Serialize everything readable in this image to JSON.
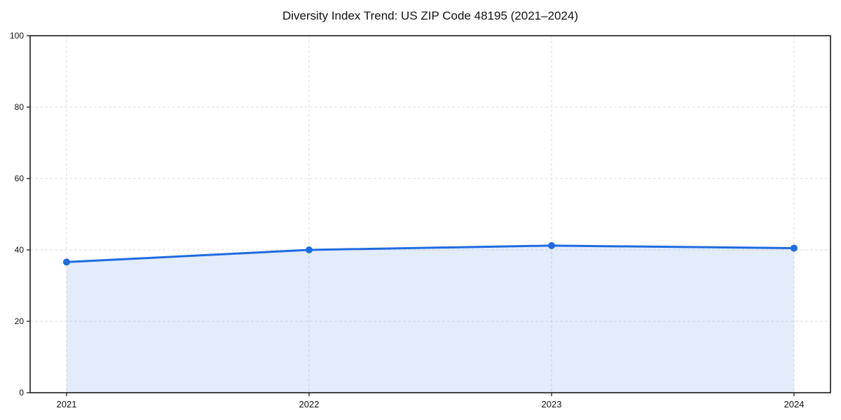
{
  "chart_data": {
    "type": "area",
    "title": "Diversity Index Trend: US ZIP Code 48195 (2021–2024)",
    "categories": [
      "2021",
      "2022",
      "2023",
      "2024"
    ],
    "series": [
      {
        "name": "Diversity Index",
        "values": [
          36.6,
          40.0,
          41.2,
          40.5
        ]
      }
    ],
    "xlabel": "",
    "ylabel": "",
    "ylim": [
      0,
      100
    ],
    "yticks": [
      0,
      20,
      40,
      60,
      80,
      100
    ],
    "grid": true,
    "grid_style": "dashed",
    "legend": false,
    "line_color": "#1f6be0",
    "fill_color": "rgba(31, 107, 224, 0.13)",
    "marker": "circle",
    "grid_color": "#dedede",
    "spine_color": "#1a1a1a",
    "background_color": "#ffffff"
  }
}
